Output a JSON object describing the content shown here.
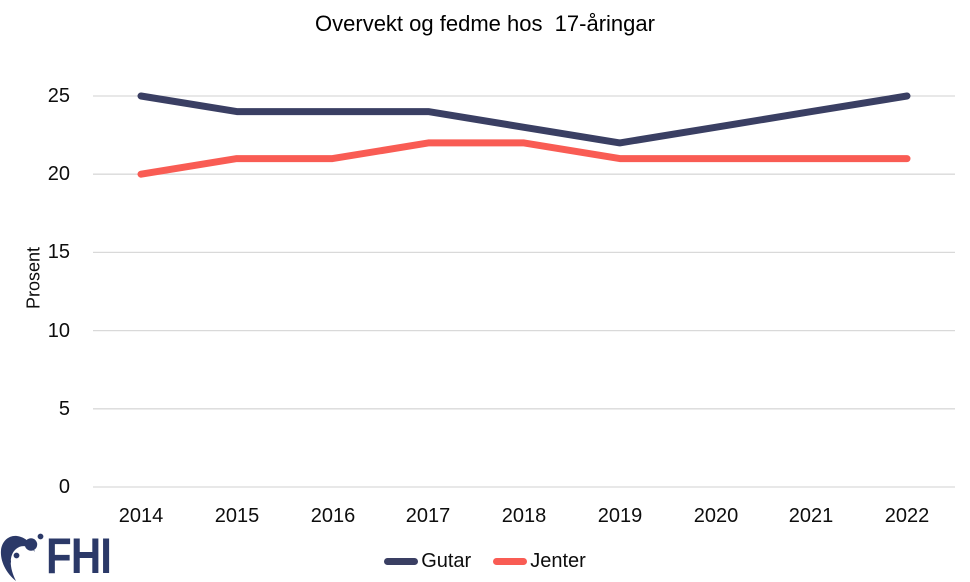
{
  "chart_data": {
    "type": "line",
    "title": "Overvekt og fedme hos  17-åringar",
    "categories": [
      "2014",
      "2015",
      "2016",
      "2017",
      "2018",
      "2019",
      "2020",
      "2021",
      "2022"
    ],
    "series": [
      {
        "name": "Gutar",
        "color": "#3a3f63",
        "values": [
          25,
          24,
          24,
          24,
          23,
          22,
          23,
          24,
          25
        ]
      },
      {
        "name": "Jenter",
        "color": "#f95c54",
        "values": [
          20,
          21,
          21,
          22,
          22,
          21,
          21,
          21,
          21
        ]
      }
    ],
    "xlabel": "",
    "ylabel": "Prosent",
    "yticks": [
      0,
      5,
      10,
      15,
      20,
      25
    ],
    "ylim": [
      0,
      27.5
    ],
    "grid": "horizontal",
    "gridline_color": "#d9d9d9",
    "legend_position": "bottom"
  },
  "logo": {
    "text": "FHI",
    "color": "#2b3968"
  }
}
